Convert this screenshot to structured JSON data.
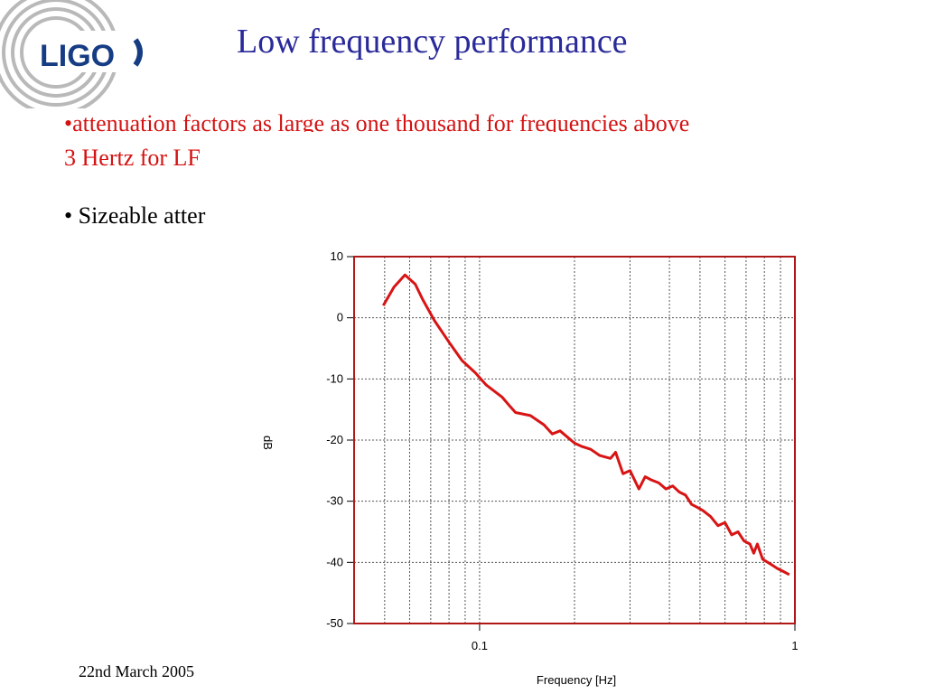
{
  "slide": {
    "title": "Low frequency performance",
    "logo_text": "LIGO",
    "bullets": [
      "•attenuation factors as large as one thousand for frequencies above",
      "3 Hertz for LF",
      "• Sizeable atter"
    ],
    "footer_date": "22nd March 2005"
  },
  "colors": {
    "title": "#2a2a9a",
    "bullet_red": "#d41212",
    "series_line": "#d81414",
    "axes_frame": "#b01818",
    "logo_text": "#163c84"
  },
  "chart_data": {
    "type": "line",
    "xlabel": "Frequency [Hz]",
    "ylabel": "dB",
    "x_scale": "log",
    "xlim": [
      0.04,
      1
    ],
    "ylim": [
      -50,
      10
    ],
    "x_ticks": [
      0.1,
      1
    ],
    "x_tick_labels": [
      "0.1",
      "1"
    ],
    "y_ticks": [
      10,
      0,
      -10,
      -20,
      -30,
      -40,
      -50
    ],
    "y_tick_labels": [
      "10",
      "0",
      "-10",
      "-20",
      "-30",
      "-40",
      "-50"
    ],
    "grid": true,
    "series": [
      {
        "x": [
          0.0495,
          0.0535,
          0.058,
          0.0625,
          0.066,
          0.072,
          0.08,
          0.088,
          0.097,
          0.105,
          0.118,
          0.125,
          0.13,
          0.145,
          0.16,
          0.17,
          0.18,
          0.2,
          0.21,
          0.225,
          0.24,
          0.26,
          0.27,
          0.285,
          0.3,
          0.32,
          0.335,
          0.35,
          0.37,
          0.39,
          0.41,
          0.43,
          0.45,
          0.47,
          0.49,
          0.51,
          0.54,
          0.57,
          0.6,
          0.63,
          0.66,
          0.69,
          0.72,
          0.74,
          0.76,
          0.79,
          0.82,
          0.85,
          0.88,
          0.92,
          0.96
        ],
        "y": [
          2,
          5,
          7,
          5.5,
          3,
          -0.5,
          -4,
          -7,
          -9,
          -11,
          -13,
          -14.5,
          -15.5,
          -16,
          -17.5,
          -19,
          -18.5,
          -20.5,
          -21,
          -21.5,
          -22.5,
          -23,
          -22,
          -25.5,
          -25,
          -28,
          -26,
          -26.5,
          -27,
          -28,
          -27.5,
          -28.5,
          -29,
          -30.5,
          -31,
          -31.5,
          -32.5,
          -34,
          -33.5,
          -35.5,
          -35,
          -36.5,
          -37,
          -38.5,
          -37,
          -39.5,
          -40,
          -40.5,
          -41,
          -41.5,
          -42
        ]
      }
    ]
  }
}
